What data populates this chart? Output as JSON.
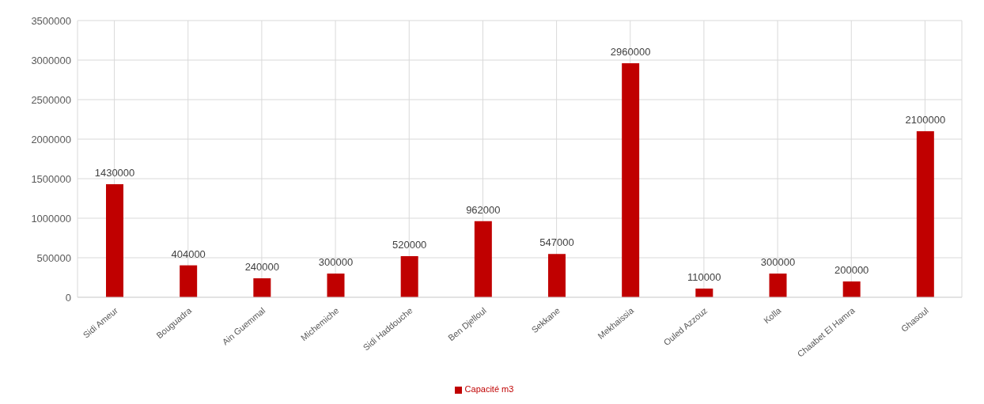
{
  "chart_data": {
    "type": "bar",
    "categories": [
      "Sidi Ameur",
      "Bouguadra",
      "Ain Guemmal",
      "Michemiche",
      "Sidi Haddouche",
      "Ben Djelloul",
      "Sekkane",
      "Mekhaissia",
      "Ouled Azzouz",
      "Kolla",
      "Chaabet El Hamra",
      "Ghasoul"
    ],
    "series": [
      {
        "name": "Capacité m3",
        "color": "#c00000",
        "values": [
          1430000,
          404000,
          240000,
          300000,
          520000,
          962000,
          547000,
          2960000,
          110000,
          300000,
          200000,
          2100000
        ]
      }
    ],
    "ylim": [
      0,
      3500000
    ],
    "yticks": [
      0,
      500000,
      1000000,
      1500000,
      2000000,
      2500000,
      3000000,
      3500000
    ],
    "grid": true,
    "legend": "bottom",
    "data_labels": true
  }
}
